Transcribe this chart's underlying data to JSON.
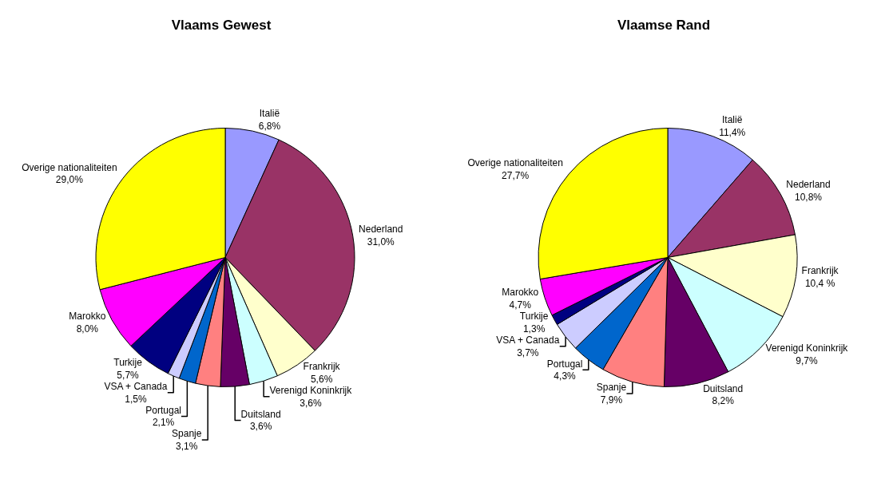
{
  "chart_data": [
    {
      "type": "pie",
      "title": "Vlaams Gewest",
      "categories": [
        "Italië",
        "Nederland",
        "Frankrijk",
        "Verenigd Koninkrijk",
        "Duitsland",
        "Spanje",
        "Portugal",
        "VSA + Canada",
        "Turkije",
        "Marokko",
        "Overige nationaliteiten"
      ],
      "values": [
        6.8,
        31.0,
        5.6,
        3.6,
        3.6,
        3.1,
        2.1,
        1.5,
        5.7,
        8.0,
        29.0
      ],
      "value_labels": [
        "6,8%",
        "31,0%",
        "5,6%",
        "3,6%",
        "3,6%",
        "3,1%",
        "2,1%",
        "1,5%",
        "5,7%",
        "8,0%",
        "29,0%"
      ],
      "colors": [
        "#9999ff",
        "#993366",
        "#ffffcc",
        "#ccffff",
        "#660066",
        "#ff8080",
        "#0066cc",
        "#ccccff",
        "#000080",
        "#ff00ff",
        "#ffff00"
      ],
      "legend": false
    },
    {
      "type": "pie",
      "title": "Vlaamse Rand",
      "categories": [
        "Italië",
        "Nederland",
        "Frankrijk",
        "Verenigd Koninkrijk",
        "Duitsland",
        "Spanje",
        "Portugal",
        "VSA + Canada",
        "Turkije",
        "Marokko",
        "Overige nationaliteiten"
      ],
      "values": [
        11.4,
        10.8,
        10.4,
        9.7,
        8.2,
        7.9,
        4.3,
        3.7,
        1.3,
        4.7,
        27.7
      ],
      "value_labels": [
        "11,4%",
        "10,8%",
        "10,4 %",
        "9,7%",
        "8,2%",
        "7,9%",
        "4,3%",
        "3,7%",
        "1,3%",
        "4,7%",
        "27,7%"
      ],
      "colors": [
        "#9999ff",
        "#993366",
        "#ffffcc",
        "#ccffff",
        "#660066",
        "#ff8080",
        "#0066cc",
        "#ccccff",
        "#000080",
        "#ff00ff",
        "#ffff00"
      ],
      "legend": false
    }
  ]
}
